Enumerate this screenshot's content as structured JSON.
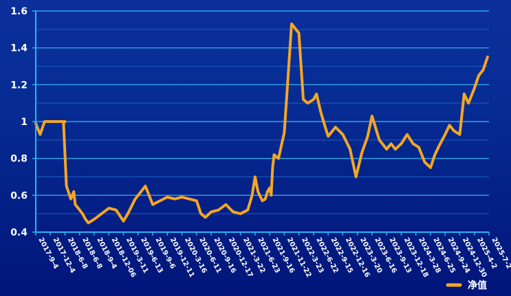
{
  "chart_data": {
    "type": "line",
    "title": "",
    "xlabel": "",
    "ylabel": "",
    "ylim": [
      0.4,
      1.6
    ],
    "yticks": [
      "0.4",
      "0.6",
      "0.8",
      "1",
      "1.2",
      "1.4",
      "1.6"
    ],
    "grid": true,
    "legend_position": "bottom-right",
    "x_tick_labels": [
      "2017-9-4",
      "2017-12-4",
      "2018-6-8",
      "2018-6-8",
      "2018-9-4",
      "2018-12-06",
      "2019-3-11",
      "2019-6-13",
      "2019-9-6",
      "2019-12-11",
      "2020-3-16",
      "2020-6-11",
      "2020-9-16",
      "2020-12-17",
      "2021-3-22",
      "2021-6-23",
      "2021-9-16",
      "2021-11-22",
      "2022-3-23",
      "2022-6-22",
      "2022-9-15",
      "2022-12-16",
      "2023-3-20",
      "2023-6-16",
      "2023-9-13",
      "2023-12-18",
      "2024-3-28",
      "2024-6-25",
      "2024-9-24",
      "2024-12-30",
      "2025-4-2",
      "2025-7-2"
    ],
    "series": [
      {
        "name": "净值",
        "color": "#f5a623",
        "x": [
          0,
          0.3,
          0.6,
          1,
          2,
          1.9,
          2.1,
          2.4,
          2.6,
          2.7,
          3,
          3.2,
          3.4,
          3.6,
          4,
          4.5,
          5,
          5.5,
          6,
          6.3,
          6.8,
          7.2,
          7.5,
          8,
          8.5,
          9,
          9.5,
          10,
          10.5,
          11,
          11.3,
          11.6,
          12,
          12.5,
          13,
          13.5,
          14,
          14.5,
          14.8,
          15,
          15.2,
          15.5,
          15.7,
          15.85,
          16,
          16.1,
          16.2,
          16.3,
          16.6,
          17,
          17.5,
          18,
          18.3,
          18.6,
          19,
          19.2,
          19.5,
          19.8,
          20,
          20.5,
          21,
          21.5,
          21.9,
          22.3,
          22.7,
          23,
          23.5,
          24,
          24.3,
          24.6,
          25,
          25.4,
          25.8,
          26.2,
          26.6,
          27,
          27.3,
          27.6,
          28,
          28.3,
          28.6,
          29,
          29.3,
          29.6,
          30,
          30.3,
          30.6,
          30.9
        ],
        "values": [
          0.99,
          0.93,
          1.0,
          1.0,
          1.0,
          0.99,
          0.65,
          0.58,
          0.62,
          0.55,
          0.52,
          0.5,
          0.47,
          0.45,
          0.47,
          0.5,
          0.53,
          0.52,
          0.46,
          0.5,
          0.58,
          0.62,
          0.65,
          0.55,
          0.57,
          0.59,
          0.58,
          0.59,
          0.58,
          0.57,
          0.5,
          0.48,
          0.51,
          0.52,
          0.55,
          0.51,
          0.5,
          0.52,
          0.6,
          0.7,
          0.62,
          0.57,
          0.58,
          0.62,
          0.64,
          0.6,
          0.75,
          0.82,
          0.8,
          0.94,
          1.53,
          1.48,
          1.12,
          1.1,
          1.12,
          1.15,
          1.05,
          0.97,
          0.92,
          0.97,
          0.93,
          0.85,
          0.7,
          0.83,
          0.92,
          1.03,
          0.9,
          0.85,
          0.88,
          0.85,
          0.88,
          0.93,
          0.88,
          0.86,
          0.78,
          0.75,
          0.82,
          0.87,
          0.93,
          0.98,
          0.95,
          0.93,
          1.15,
          1.1,
          1.18,
          1.25,
          1.28,
          1.35
        ]
      }
    ]
  }
}
